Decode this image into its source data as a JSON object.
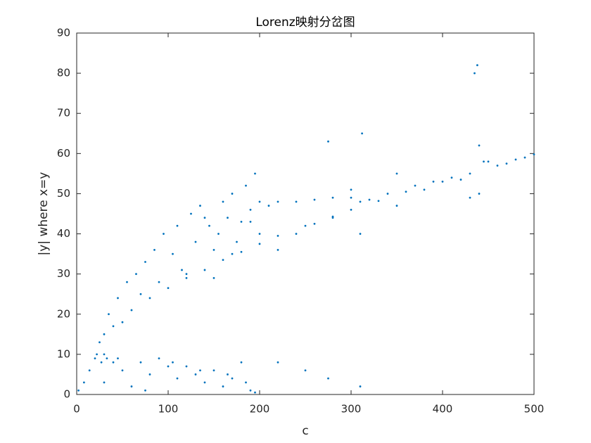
{
  "chart_data": {
    "type": "scatter",
    "title": "Lorenz映射分岔图",
    "x_label": "c",
    "y_label": "|y| where x=y",
    "color": "#0072bd",
    "xlim": [
      0,
      500
    ],
    "ylim": [
      0,
      90
    ],
    "xticks": [
      0,
      100,
      200,
      300,
      400,
      500
    ],
    "yticks": [
      0,
      10,
      20,
      30,
      40,
      50,
      60,
      70,
      80,
      90
    ],
    "grid": false,
    "x": [
      2,
      8,
      14,
      20,
      22,
      27,
      30,
      33,
      30,
      40,
      50,
      60,
      70,
      80,
      90,
      100,
      110,
      120,
      130,
      140,
      150,
      160,
      170,
      180,
      190,
      195,
      45,
      75,
      105,
      135,
      165,
      185,
      25,
      40,
      60,
      80,
      100,
      120,
      140,
      160,
      180,
      200,
      220,
      250,
      280,
      300,
      330,
      360,
      400,
      430,
      460,
      480,
      500,
      30,
      35,
      45,
      50,
      55,
      65,
      70,
      75,
      85,
      90,
      95,
      105,
      110,
      115,
      125,
      130,
      135,
      145,
      150,
      155,
      165,
      170,
      175,
      185,
      190,
      195,
      180,
      160,
      140,
      200,
      210,
      220,
      240,
      260,
      280,
      300,
      310,
      320,
      200,
      220,
      240,
      260,
      280,
      120,
      150,
      170,
      190,
      340,
      350,
      370,
      380,
      390,
      410,
      420,
      440,
      440,
      450,
      470,
      490,
      435,
      438,
      300,
      310,
      312,
      275,
      350,
      430,
      445,
      250,
      275,
      310,
      220
    ],
    "values": [
      1,
      3,
      6,
      9,
      10,
      8,
      10,
      9,
      3,
      8,
      6,
      2,
      8,
      5,
      9,
      7,
      4,
      7,
      5,
      3,
      6,
      2,
      4,
      8,
      1,
      0.5,
      9,
      1,
      8,
      6,
      5,
      3,
      13,
      17,
      21,
      24,
      26.5,
      29,
      31,
      33.5,
      35.5,
      37.5,
      39.5,
      42,
      44.3,
      46,
      48.2,
      50.5,
      53,
      55,
      57,
      58.5,
      59.8,
      15,
      20,
      24,
      18,
      28,
      30,
      25,
      33,
      36,
      28,
      40,
      35,
      42,
      31,
      45,
      38,
      47,
      42,
      36,
      40,
      44,
      50,
      38,
      52,
      46,
      55,
      43,
      48,
      44,
      48,
      47,
      48,
      48,
      48.5,
      49,
      49,
      48,
      48.5,
      40,
      36,
      40,
      42.5,
      44,
      30,
      29,
      35,
      43,
      50,
      47,
      52,
      51,
      53,
      54,
      53.5,
      50,
      62,
      58,
      57.5,
      59,
      80,
      82,
      51,
      40,
      65,
      63,
      55,
      49,
      58,
      6,
      4,
      2,
      8
    ]
  }
}
